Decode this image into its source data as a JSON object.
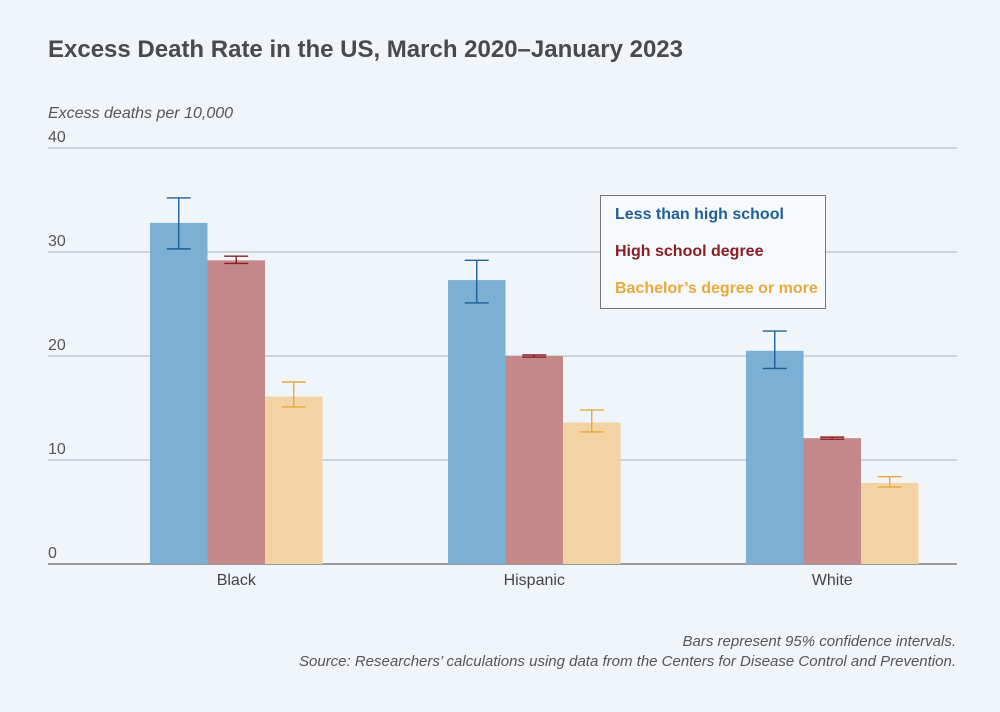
{
  "chart_data": {
    "type": "bar",
    "title": "Excess Death Rate in the US, March 2020–January 2023",
    "ylabel": "Excess deaths per 10,000",
    "xlabel": "",
    "ylim": [
      0,
      40
    ],
    "yticks": [
      "0",
      "10",
      "20",
      "30",
      "40"
    ],
    "categories": [
      "Black",
      "Hispanic",
      "White"
    ],
    "series": [
      {
        "name": "Less than high school",
        "color": "#7bafd4",
        "error_color": "#1f5f99",
        "values": [
          32.8,
          27.3,
          20.5
        ],
        "ci_low": [
          30.3,
          25.1,
          18.8
        ],
        "ci_high": [
          35.2,
          29.2,
          22.4
        ]
      },
      {
        "name": "High school degree",
        "color": "#c4888a",
        "error_color": "#8b1d24",
        "values": [
          29.2,
          20.0,
          12.1
        ],
        "ci_low": [
          28.9,
          19.9,
          12.0
        ],
        "ci_high": [
          29.6,
          20.1,
          12.2
        ]
      },
      {
        "name": "Bachelor’s degree or more",
        "color": "#f2d3a3",
        "error_color": "#e8a93a",
        "values": [
          16.1,
          13.6,
          7.8
        ],
        "ci_low": [
          15.1,
          12.7,
          7.4
        ],
        "ci_high": [
          17.5,
          14.8,
          8.4
        ]
      }
    ],
    "legend_colors": [
      "#1f5f99",
      "#8b1d24",
      "#e8a93a"
    ],
    "notes": [
      "Bars represent 95% confidence intervals.",
      "Source: Researchers’ calculations using data from the Centers for Disease Control and Prevention."
    ]
  }
}
